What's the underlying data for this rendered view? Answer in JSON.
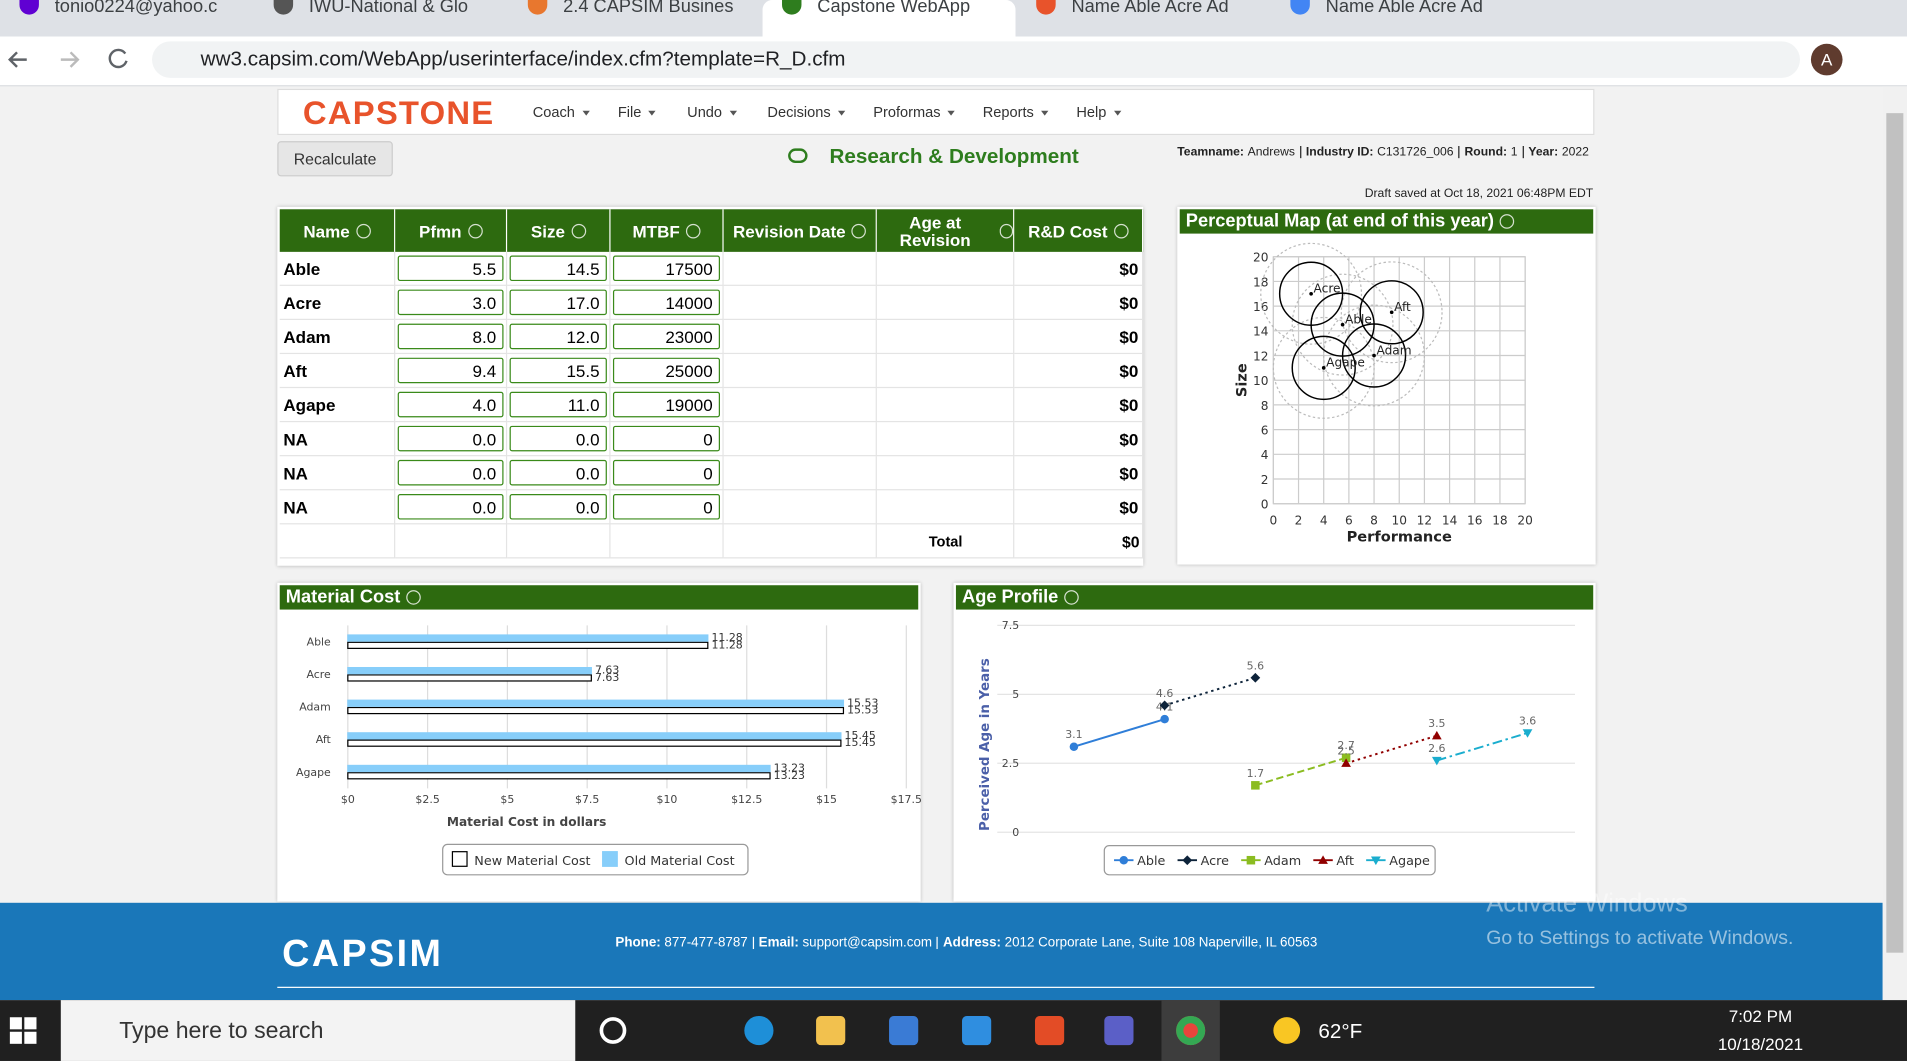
{
  "browser": {
    "tabs": [
      "tonio0224@yahoo.c",
      "IWU-National & Glo",
      "2.4 CAPSIM Busines",
      "Capstone WebApp",
      "Name Able Acre Ad",
      "Name Able Acre Ad"
    ],
    "active_tab": 3,
    "url": "ww3.capsim.com/WebApp/userinterface/index.cfm?template=R_D.cfm",
    "avatar": "A"
  },
  "app": {
    "logo": "CAPSTONE",
    "menu": [
      "Coach",
      "File",
      "Undo",
      "Decisions",
      "Proformas",
      "Reports",
      "Help"
    ],
    "recalculate": "Recalculate",
    "title": "Research & Development",
    "team_info": [
      {
        "label": "Teamname:",
        "value": "Andrews"
      },
      {
        "label": "Industry ID:",
        "value": "C131726_006"
      },
      {
        "label": "Round:",
        "value": "1"
      },
      {
        "label": "Year:",
        "value": "2022"
      }
    ],
    "draft_saved": "Draft saved at Oct 18, 2021 06:48PM EDT"
  },
  "table": {
    "headers": [
      "Name",
      "Pfmn",
      "Size",
      "MTBF",
      "Revision Date",
      "Age at Revision",
      "R&D Cost"
    ],
    "rows": [
      [
        "Able",
        "5.5",
        "14.5",
        "17500",
        "$0"
      ],
      [
        "Acre",
        "3.0",
        "17.0",
        "14000",
        "$0"
      ],
      [
        "Adam",
        "8.0",
        "12.0",
        "23000",
        "$0"
      ],
      [
        "Aft",
        "9.4",
        "15.5",
        "25000",
        "$0"
      ],
      [
        "Agape",
        "4.0",
        "11.0",
        "19000",
        "$0"
      ],
      [
        "NA",
        "0.0",
        "0.0",
        "0",
        "$0"
      ],
      [
        "NA",
        "0.0",
        "0.0",
        "0",
        "$0"
      ],
      [
        "NA",
        "0.0",
        "0.0",
        "0",
        "$0"
      ]
    ],
    "total_label": "Total",
    "total": "$0"
  },
  "chart_data": [
    {
      "type": "scatter",
      "title": "Perceptual Map (at end of this year)",
      "x_label": "Performance",
      "y_label": "Size",
      "point_labels": [
        "Able",
        "Acre",
        "Adam",
        "Aft",
        "Agape"
      ],
      "x": [
        5.5,
        3.0,
        8.0,
        9.4,
        4.0
      ],
      "values": [
        14.5,
        17.0,
        12.0,
        15.5,
        11.0
      ],
      "xlim": [
        0,
        20
      ],
      "ylim": [
        0,
        20
      ],
      "xticks": [
        0,
        2,
        4,
        6,
        8,
        10,
        12,
        14,
        16,
        18,
        20
      ],
      "yticks": [
        0,
        2,
        4,
        6,
        8,
        10,
        12,
        14,
        16,
        18,
        20
      ],
      "grid": true,
      "color": "#000000"
    },
    {
      "type": "bar",
      "orientation": "horizontal",
      "title": "Material Cost",
      "x_label": "Material Cost in dollars",
      "categories": [
        "Able",
        "Acre",
        "Adam",
        "Aft",
        "Agape"
      ],
      "series": [
        {
          "name": "New Material Cost",
          "color": "#ffffff",
          "edgecolor": "#000000",
          "values": [
            11.28,
            7.63,
            15.53,
            15.45,
            13.23
          ]
        },
        {
          "name": "Old Material Cost",
          "color": "#87cefa",
          "edgecolor": "#87cefa",
          "values": [
            11.28,
            7.63,
            15.53,
            15.45,
            13.23
          ]
        }
      ],
      "xlim": [
        0,
        17.5
      ],
      "xticks": [
        {
          "value": 0,
          "label": "$0"
        },
        {
          "value": 2.5,
          "label": "$2.5"
        },
        {
          "value": 5,
          "label": "$5"
        },
        {
          "value": 7.5,
          "label": "$7.5"
        },
        {
          "value": 10,
          "label": "$10"
        },
        {
          "value": 12.5,
          "label": "$12.5"
        },
        {
          "value": 15,
          "label": "$15"
        },
        {
          "value": 17.5,
          "label": "$17.5"
        }
      ],
      "grid": true,
      "legend": "bottom"
    },
    {
      "type": "line",
      "title": "Age Profile",
      "y_label": "Perceived Age in Years",
      "categories": [
        null,
        null,
        null,
        null,
        null,
        null
      ],
      "series": [
        {
          "name": "Able",
          "color": "#2f7ed8",
          "dash": "solid",
          "marker": "circle",
          "values": [
            3.1,
            4.1,
            null,
            null,
            null,
            null
          ]
        },
        {
          "name": "Acre",
          "color": "#0d233a",
          "dash": "dotted",
          "marker": "diamond",
          "values": [
            null,
            4.6,
            5.6,
            null,
            null,
            null
          ]
        },
        {
          "name": "Adam",
          "color": "#8bbc21",
          "dash": "dashed",
          "marker": "square",
          "values": [
            null,
            null,
            1.7,
            2.7,
            null,
            null
          ]
        },
        {
          "name": "Aft",
          "color": "#910000",
          "dash": "dotted",
          "marker": "triangle",
          "values": [
            null,
            null,
            null,
            2.5,
            3.5,
            null
          ]
        },
        {
          "name": "Agape",
          "color": "#1aadce",
          "dash": "dashdot",
          "marker": "triangle-down",
          "values": [
            null,
            null,
            null,
            null,
            2.6,
            3.6
          ]
        }
      ],
      "ylim": [
        0,
        7.5
      ],
      "yticks": [
        0,
        2.5,
        5,
        7.5
      ],
      "grid": true,
      "legend": "bottom"
    }
  ],
  "footer": {
    "logo": "CAPSIM",
    "contact": [
      {
        "label": "Phone:",
        "value": "877-477-8787"
      },
      {
        "label": "Email:",
        "value": "support@capsim.com"
      },
      {
        "label": "Address:",
        "value": "2012 Corporate Lane, Suite 108 Naperville, IL 60563"
      }
    ]
  },
  "watermark": {
    "title": "Activate Windows",
    "subtitle": "Go to Settings to activate Windows."
  },
  "taskbar": {
    "search": "Type here to search",
    "weather": "62°F",
    "time": "7:02 PM",
    "date": "10/18/2021"
  }
}
